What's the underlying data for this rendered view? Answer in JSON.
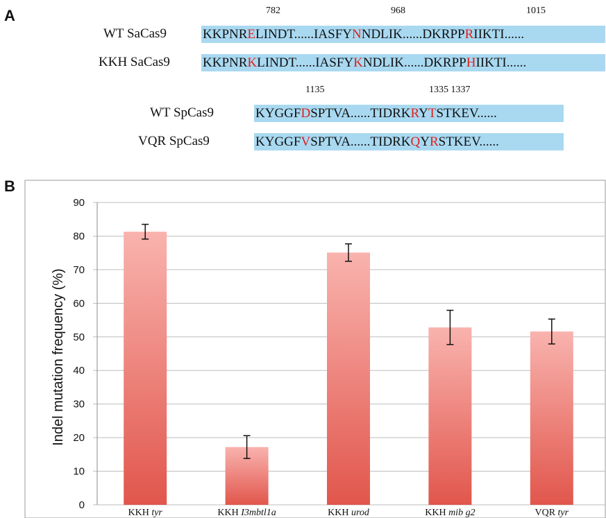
{
  "panel_a": {
    "letter": "A",
    "sacas9_positions": [
      "782",
      "968",
      "1015"
    ],
    "spcas9_positions": [
      "1135",
      "1335 1337"
    ],
    "rows": [
      {
        "name": "WT SaCas9",
        "segments": [
          {
            "t": "KKPNR"
          },
          {
            "t": "E",
            "m": true
          },
          {
            "t": "LINDT......IASFY"
          },
          {
            "t": "N",
            "m": true
          },
          {
            "t": "NDLIK......DKRPP"
          },
          {
            "t": "R",
            "m": true
          },
          {
            "t": "IIKTI......"
          }
        ]
      },
      {
        "name": "KKH SaCas9",
        "segments": [
          {
            "t": "KKPNR"
          },
          {
            "t": "K",
            "m": true
          },
          {
            "t": "LINDT......IASFY"
          },
          {
            "t": "K",
            "m": true
          },
          {
            "t": "NDLIK......DKRPP"
          },
          {
            "t": "H",
            "m": true
          },
          {
            "t": "IIKTI......"
          }
        ]
      },
      {
        "name": "WT SpCas9",
        "segments": [
          {
            "t": "KYGGF"
          },
          {
            "t": "D",
            "m": true
          },
          {
            "t": "SPTVA......TIDRK"
          },
          {
            "t": "R",
            "m": true
          },
          {
            "t": "Y"
          },
          {
            "t": "T",
            "m": true
          },
          {
            "t": "STKEV......"
          }
        ]
      },
      {
        "name": "VQR SpCas9",
        "segments": [
          {
            "t": "KYGGF"
          },
          {
            "t": "V",
            "m": true
          },
          {
            "t": "SPTVA......TIDRK"
          },
          {
            "t": "Q",
            "m": true
          },
          {
            "t": "Y"
          },
          {
            "t": "R",
            "m": true
          },
          {
            "t": "STKEV......"
          }
        ]
      }
    ]
  },
  "panel_b": {
    "letter": "B"
  },
  "chart_data": {
    "type": "bar",
    "title": "",
    "xlabel": "",
    "ylabel": "Indel mutation frequency (%)",
    "ylim": [
      0,
      90
    ],
    "yticks": [
      0,
      10,
      20,
      30,
      40,
      50,
      60,
      70,
      80,
      90
    ],
    "grid": true,
    "categories": [
      {
        "prefix": "KKH",
        "gene": "tyr"
      },
      {
        "prefix": "KKH",
        "gene": "I3mbtl1a"
      },
      {
        "prefix": "KKH",
        "gene": "urod"
      },
      {
        "prefix": "KKH",
        "gene": "mib g2"
      },
      {
        "prefix": "VQR",
        "gene": "tyr"
      }
    ],
    "values": [
      81.3,
      17.2,
      75.1,
      52.8,
      51.6
    ],
    "error_low": [
      79.1,
      13.8,
      72.5,
      47.7,
      47.9
    ],
    "error_high": [
      83.5,
      20.6,
      77.7,
      57.9,
      55.3
    ],
    "bar_gradient": [
      "#f9b3ae",
      "#e1564c"
    ],
    "grid_color": "#bdbdbd"
  }
}
